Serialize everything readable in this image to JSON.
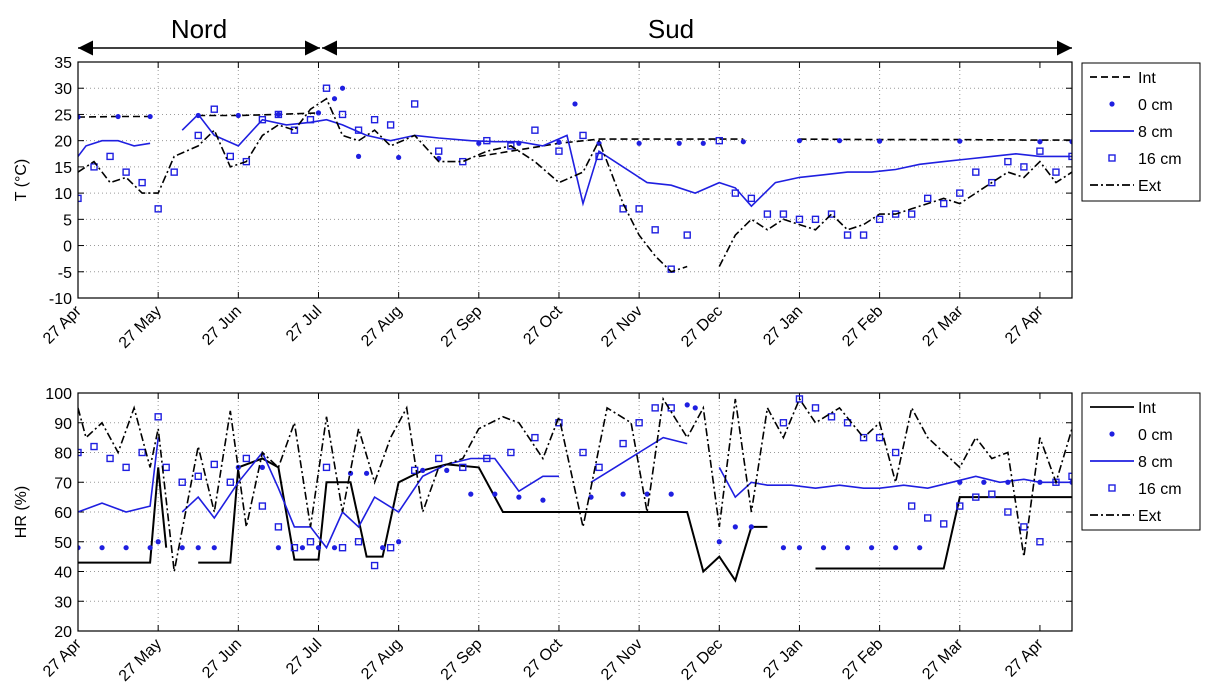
{
  "regions": [
    {
      "name": "Nord",
      "from": "27 Apr",
      "to": "27 Jul"
    },
    {
      "name": "Sud",
      "from": "27 Jul",
      "to": "27 Apr"
    }
  ],
  "chart_data": [
    {
      "type": "line",
      "ylabel": "T (°C)",
      "xlabel": "",
      "ylim": [
        -10,
        35
      ],
      "yticks": [
        -10,
        -5,
        0,
        5,
        10,
        15,
        20,
        25,
        30,
        35
      ],
      "xticks": [
        "27 Apr",
        "27 May",
        "27 Jun",
        "27 Jul",
        "27 Aug",
        "27 Sep",
        "27 Oct",
        "27 Nov",
        "27 Dec",
        "27 Jan",
        "27 Feb",
        "27 Mar",
        "27 Apr"
      ],
      "grid": true,
      "legend_position": "right",
      "series": [
        {
          "name": "Int",
          "style": "dashed",
          "color": "#000000",
          "x": [
            0,
            0.5,
            0.9,
            1.0,
            1.5,
            2.0,
            2.5,
            3.0,
            3.5,
            4.0,
            5.0,
            6.0,
            6.5,
            7.0,
            7.5,
            8.0,
            8.3,
            8.8,
            9.0,
            10.0,
            11.0,
            12.0,
            12.4
          ],
          "y": [
            24.5,
            24.6,
            24.6,
            null,
            24.8,
            24.8,
            25,
            25.3,
            null,
            null,
            17,
            19.5,
            20.3,
            20.3,
            20.3,
            20.3,
            20.3,
            null,
            20.3,
            20.2,
            20.2,
            20.1,
            20.1
          ]
        },
        {
          "name": "0 cm",
          "style": "dots",
          "color": "#1f1fe0",
          "x": [
            0,
            0.5,
            0.9,
            1.1,
            1.5,
            2.0,
            2.5,
            3.0,
            3.2,
            3.3,
            3.5,
            4.0,
            4.5,
            5.0,
            5.5,
            6.0,
            6.2,
            6.5,
            7.0,
            7.5,
            7.8,
            8.3,
            8.5,
            9.0,
            9.5,
            10.0,
            11.0,
            12.0,
            12.4
          ],
          "y": [
            24.5,
            24.6,
            24.6,
            null,
            24.8,
            24.8,
            25,
            25.3,
            28,
            30,
            17,
            16.8,
            16.6,
            19.5,
            19.5,
            19.7,
            27,
            19.5,
            19.5,
            19.5,
            19.5,
            19.8,
            null,
            20,
            20,
            19.9,
            19.9,
            19.8,
            19.8
          ]
        },
        {
          "name": "8 cm",
          "style": "solid",
          "color": "#1f1fe0",
          "x": [
            0,
            0.1,
            0.3,
            0.5,
            0.7,
            0.9,
            1.1,
            1.3,
            1.5,
            1.7,
            2.0,
            2.3,
            2.6,
            2.9,
            3.1,
            3.3,
            3.6,
            3.9,
            4.2,
            4.5,
            4.9,
            5.2,
            5.5,
            5.8,
            6.1,
            6.3,
            6.5,
            6.8,
            7.1,
            7.4,
            7.7,
            8.0,
            8.2,
            8.4,
            8.7,
            9.0,
            9.3,
            9.6,
            9.9,
            10.2,
            10.5,
            10.8,
            11.1,
            11.4,
            11.7,
            12.0,
            12.4
          ],
          "y": [
            17,
            19,
            20,
            20,
            19,
            19.5,
            null,
            22,
            25,
            21,
            19,
            24,
            23,
            23.5,
            24,
            23,
            21,
            20,
            21,
            20.5,
            20,
            19.8,
            19.8,
            19,
            21,
            8,
            18,
            15,
            12,
            11.5,
            10,
            12,
            11,
            7.5,
            12,
            13,
            13.5,
            14,
            14,
            14.5,
            15.5,
            16,
            16.5,
            17,
            17.5,
            17,
            17
          ]
        },
        {
          "name": "16 cm",
          "style": "squares",
          "color": "#1f1fe0",
          "x": [
            0,
            0.2,
            0.4,
            0.6,
            0.8,
            1.0,
            1.2,
            1.5,
            1.7,
            1.9,
            2.1,
            2.3,
            2.5,
            2.7,
            2.9,
            3.1,
            3.3,
            3.5,
            3.7,
            3.9,
            4.2,
            4.5,
            4.8,
            5.1,
            5.4,
            5.7,
            6.0,
            6.3,
            6.5,
            6.8,
            7.0,
            7.2,
            7.4,
            7.6,
            7.8,
            8.0,
            8.2,
            8.4,
            8.6,
            8.8,
            9.0,
            9.2,
            9.4,
            9.6,
            9.8,
            10.0,
            10.2,
            10.4,
            10.6,
            10.8,
            11.0,
            11.2,
            11.4,
            11.6,
            11.8,
            12.0,
            12.2,
            12.4
          ],
          "y": [
            9,
            15,
            17,
            14,
            12,
            7,
            14,
            21,
            26,
            17,
            16,
            24,
            25,
            22,
            24,
            30,
            25,
            22,
            24,
            23,
            27,
            18,
            16,
            20,
            19,
            22,
            18,
            21,
            17,
            7,
            7,
            3,
            -4.5,
            2,
            null,
            20,
            10,
            9,
            6,
            6,
            5,
            5,
            6,
            2,
            2,
            5,
            6,
            6,
            9,
            8,
            10,
            14,
            12,
            16,
            15,
            18,
            14,
            17
          ]
        },
        {
          "name": "Ext",
          "style": "dashdot",
          "color": "#000000",
          "x": [
            0,
            0.2,
            0.4,
            0.6,
            0.8,
            1.0,
            1.2,
            1.5,
            1.7,
            1.9,
            2.1,
            2.3,
            2.5,
            2.7,
            2.9,
            3.1,
            3.3,
            3.5,
            3.7,
            3.9,
            4.2,
            4.5,
            4.8,
            5.1,
            5.4,
            5.7,
            6.0,
            6.3,
            6.5,
            6.8,
            7.0,
            7.2,
            7.4,
            7.6,
            7.8,
            8.0,
            8.2,
            8.4,
            8.6,
            8.8,
            9.0,
            9.2,
            9.4,
            9.6,
            9.8,
            10.0,
            10.2,
            10.4,
            10.6,
            10.8,
            11.0,
            11.2,
            11.4,
            11.6,
            11.8,
            12.0,
            12.2,
            12.4
          ],
          "y": [
            14,
            16,
            12,
            13,
            10,
            10,
            17,
            19,
            22,
            15,
            16,
            21,
            23,
            22,
            26,
            28,
            21,
            20,
            22,
            19,
            21,
            16,
            16,
            18,
            19,
            16,
            12,
            14,
            20,
            8,
            2,
            -2,
            -5,
            -4,
            null,
            -4,
            2,
            5,
            3,
            5,
            4,
            3,
            6,
            3,
            4,
            6,
            6,
            7,
            8,
            9,
            8,
            10,
            12,
            14,
            13,
            16,
            12,
            14
          ]
        }
      ]
    },
    {
      "type": "line",
      "ylabel": "HR (%)",
      "xlabel": "",
      "ylim": [
        20,
        100
      ],
      "yticks": [
        20,
        30,
        40,
        50,
        60,
        70,
        80,
        90,
        100
      ],
      "xticks": [
        "27 Apr",
        "27 May",
        "27 Jun",
        "27 Jul",
        "27 Aug",
        "27 Sep",
        "27 Oct",
        "27 Nov",
        "27 Dec",
        "27 Jan",
        "27 Feb",
        "27 Mar",
        "27 Apr"
      ],
      "grid": true,
      "legend_position": "right",
      "series": [
        {
          "name": "Int",
          "style": "solid",
          "color": "#000000",
          "x": [
            0,
            0.3,
            0.6,
            0.9,
            1.0,
            1.1,
            1.2,
            1.5,
            1.7,
            1.9,
            2.0,
            2.3,
            2.5,
            2.7,
            2.9,
            3.0,
            3.1,
            3.3,
            3.4,
            3.6,
            3.8,
            4.0,
            4.3,
            4.6,
            5.0,
            5.3,
            5.5,
            5.7,
            5.9,
            6.2,
            6.5,
            7.0,
            7.2,
            7.4,
            7.6,
            7.8,
            8.0,
            8.2,
            8.4,
            8.6,
            8.9,
            9.2,
            9.5,
            9.8,
            10.0,
            10.3,
            10.6,
            10.8,
            11.0,
            11.3,
            11.6,
            12.0,
            12.4
          ],
          "y": [
            43,
            43,
            43,
            43,
            75,
            48,
            null,
            43,
            43,
            43,
            75,
            78,
            75,
            44,
            44,
            44,
            70,
            70,
            70,
            45,
            45,
            70,
            74,
            76,
            75,
            60,
            60,
            60,
            60,
            60,
            60,
            60,
            60,
            60,
            60,
            40,
            45,
            37,
            55,
            55,
            null,
            41,
            41,
            41,
            41,
            41,
            41,
            41,
            65,
            65,
            65,
            65,
            65
          ]
        },
        {
          "name": "0 cm",
          "style": "dots",
          "color": "#1f1fe0",
          "x": [
            0,
            0.3,
            0.6,
            0.9,
            1.0,
            1.1,
            1.3,
            1.5,
            1.7,
            2.0,
            2.3,
            2.5,
            2.8,
            3.0,
            3.2,
            3.4,
            3.6,
            3.8,
            4.0,
            4.3,
            4.6,
            4.9,
            5.2,
            5.5,
            5.8,
            6.1,
            6.4,
            6.8,
            7.1,
            7.4,
            7.6,
            7.7,
            7.8,
            8.0,
            8.2,
            8.4,
            8.6,
            8.8,
            9.0,
            9.3,
            9.6,
            9.9,
            10.2,
            10.5,
            10.8,
            11.0,
            11.3,
            11.6,
            12.0,
            12.4
          ],
          "y": [
            48,
            48,
            48,
            48,
            50,
            null,
            48,
            48,
            48,
            75,
            75,
            48,
            48,
            48,
            48,
            73,
            73,
            48,
            50,
            74,
            74,
            66,
            66,
            65,
            64,
            null,
            65,
            66,
            66,
            66,
            96,
            95,
            null,
            50,
            55,
            55,
            null,
            48,
            48,
            48,
            48,
            48,
            48,
            48,
            null,
            70,
            70,
            70,
            70,
            70
          ]
        },
        {
          "name": "8 cm",
          "style": "solid",
          "color": "#1f1fe0",
          "x": [
            0,
            0.3,
            0.6,
            0.9,
            1.0,
            1.1,
            1.3,
            1.5,
            1.7,
            2.0,
            2.3,
            2.5,
            2.7,
            2.9,
            3.1,
            3.3,
            3.5,
            3.7,
            4.0,
            4.3,
            4.6,
            4.9,
            5.2,
            5.5,
            5.8,
            6.0,
            6.1,
            6.4,
            6.7,
            7.0,
            7.3,
            7.6,
            7.8,
            8.0,
            8.2,
            8.4,
            8.6,
            8.9,
            9.2,
            9.5,
            9.8,
            10.0,
            10.3,
            10.6,
            10.9,
            11.2,
            11.5,
            11.8,
            12.0,
            12.4
          ],
          "y": [
            60,
            63,
            60,
            62,
            85,
            null,
            60,
            65,
            58,
            70,
            80,
            68,
            55,
            55,
            48,
            60,
            55,
            65,
            60,
            72,
            76,
            78,
            78,
            67,
            72,
            72,
            null,
            70,
            75,
            80,
            85,
            83,
            null,
            75,
            65,
            70,
            69,
            69,
            68,
            69,
            68,
            68,
            69,
            68,
            70,
            72,
            70,
            71,
            70,
            70
          ]
        },
        {
          "name": "16 cm",
          "style": "squares",
          "color": "#1f1fe0",
          "x": [
            0,
            0.2,
            0.4,
            0.6,
            0.8,
            1.0,
            1.1,
            1.3,
            1.5,
            1.7,
            1.9,
            2.1,
            2.3,
            2.5,
            2.7,
            2.9,
            3.1,
            3.3,
            3.5,
            3.7,
            3.9,
            4.2,
            4.5,
            4.8,
            5.1,
            5.4,
            5.7,
            6.0,
            6.3,
            6.5,
            6.8,
            7.0,
            7.2,
            7.4,
            7.6,
            7.8,
            8.0,
            8.2,
            8.4,
            8.6,
            8.8,
            9.0,
            9.2,
            9.4,
            9.6,
            9.8,
            10.0,
            10.2,
            10.4,
            10.6,
            10.8,
            11.0,
            11.2,
            11.4,
            11.6,
            11.8,
            12.0,
            12.2,
            12.4
          ],
          "y": [
            80,
            82,
            78,
            75,
            80,
            92,
            75,
            70,
            72,
            76,
            70,
            78,
            62,
            55,
            48,
            50,
            75,
            48,
            50,
            42,
            48,
            74,
            78,
            75,
            78,
            80,
            85,
            90,
            80,
            75,
            83,
            90,
            95,
            95,
            null,
            null,
            null,
            null,
            null,
            null,
            90,
            98,
            95,
            92,
            90,
            85,
            85,
            80,
            62,
            58,
            56,
            62,
            65,
            66,
            60,
            55,
            50,
            70,
            72
          ]
        },
        {
          "name": "Ext",
          "style": "dashdot",
          "color": "#000000",
          "x": [
            0,
            0.1,
            0.3,
            0.5,
            0.7,
            0.9,
            1.0,
            1.2,
            1.5,
            1.7,
            1.9,
            2.1,
            2.3,
            2.5,
            2.7,
            2.9,
            3.1,
            3.3,
            3.5,
            3.7,
            3.9,
            4.1,
            4.3,
            4.5,
            4.8,
            5.0,
            5.3,
            5.5,
            5.8,
            6.0,
            6.3,
            6.6,
            6.9,
            7.1,
            7.3,
            7.6,
            7.8,
            8.0,
            8.2,
            8.4,
            8.6,
            8.8,
            9.0,
            9.2,
            9.5,
            9.8,
            10.0,
            10.2,
            10.4,
            10.6,
            10.8,
            11.0,
            11.2,
            11.4,
            11.6,
            11.8,
            12.0,
            12.2,
            12.4
          ],
          "y": [
            95,
            85,
            90,
            80,
            95,
            75,
            88,
            40,
            82,
            60,
            94,
            55,
            80,
            75,
            90,
            55,
            92,
            60,
            88,
            70,
            85,
            95,
            60,
            75,
            78,
            88,
            92,
            90,
            78,
            92,
            55,
            95,
            90,
            60,
            98,
            85,
            95,
            55,
            98,
            60,
            95,
            85,
            98,
            90,
            95,
            85,
            90,
            70,
            95,
            85,
            80,
            75,
            85,
            78,
            80,
            45,
            85,
            70,
            88
          ]
        }
      ]
    }
  ]
}
